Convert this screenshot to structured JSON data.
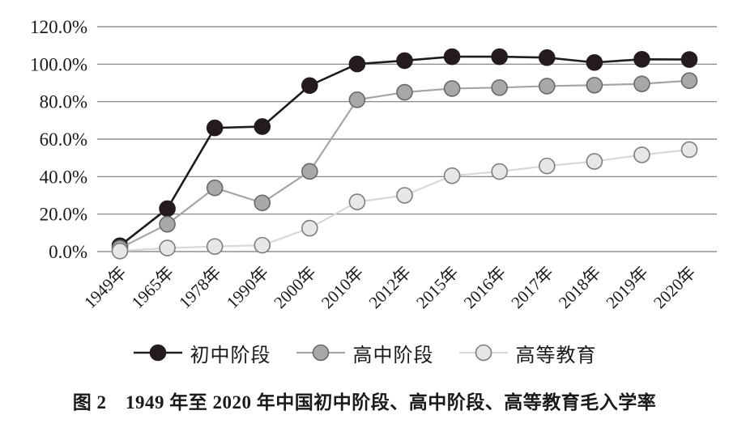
{
  "chart_data": {
    "type": "line",
    "title": "图 2　1949 年至 2020 年中国初中阶段、高中阶段、高等教育毛入学率",
    "categories": [
      "1949年",
      "1965年",
      "1978年",
      "1990年",
      "2000年",
      "2010年",
      "2012年",
      "2015年",
      "2016年",
      "2017年",
      "2018年",
      "2019年",
      "2020年"
    ],
    "series": [
      {
        "name": "初中阶段",
        "values": [
          3.1,
          22.9,
          66.0,
          66.7,
          88.6,
          100.1,
          101.9,
          104.0,
          104.0,
          103.5,
          100.9,
          102.6,
          102.5
        ],
        "line_color": "#1f1c1c",
        "marker_fill": "#241c1c",
        "marker_stroke": "#241c1c"
      },
      {
        "name": "高中阶段",
        "values": [
          1.8,
          14.6,
          34.0,
          26.0,
          42.8,
          81.0,
          85.0,
          87.0,
          87.5,
          88.3,
          88.8,
          89.5,
          91.2
        ],
        "line_color": "#a5a5a5",
        "marker_fill": "#a8a8a8",
        "marker_stroke": "#696969"
      },
      {
        "name": "高等教育",
        "values": [
          0.3,
          1.9,
          2.7,
          3.4,
          12.5,
          26.5,
          30.0,
          40.5,
          42.7,
          45.7,
          48.1,
          51.6,
          54.4
        ],
        "line_color": "#d8d8d8",
        "marker_fill": "#e7e7e7",
        "marker_stroke": "#7d7d7d"
      }
    ],
    "xlabel": "",
    "ylabel": "",
    "ylim": [
      0,
      120
    ],
    "ytick_step": 20,
    "ytick_labels": [
      "0.0%",
      "20.0%",
      "40.0%",
      "60.0%",
      "80.0%",
      "100.0%",
      "120.0%"
    ],
    "grid": true,
    "gridline_color": "#7a7a7a",
    "legend_position": "bottom",
    "text_color": "#1a1a1a"
  },
  "caption": {
    "text": "图 2　1949 年至 2020 年中国初中阶段、高中阶段、高等教育毛入学率"
  }
}
